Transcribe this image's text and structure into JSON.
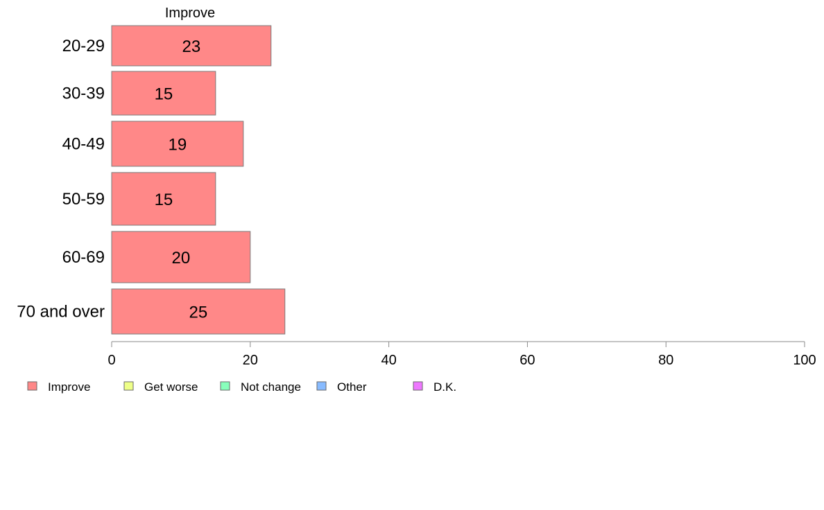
{
  "chart_data": {
    "type": "bar",
    "orientation": "horizontal",
    "categories": [
      "20-29",
      "30-39",
      "40-49",
      "50-59",
      "60-69",
      "70 and over"
    ],
    "series": [
      {
        "name": "Improve",
        "values": [
          23,
          15,
          19,
          15,
          20,
          25
        ],
        "color": "#ff8888"
      }
    ],
    "series_title": "Improve",
    "xlim": [
      0,
      100
    ],
    "xticks": [
      0,
      20,
      40,
      60,
      80,
      100
    ],
    "grid": false,
    "legend": {
      "placement": "bottom-left",
      "entries": [
        {
          "label": "Improve",
          "color": "#ff8888"
        },
        {
          "label": "Get worse",
          "color": "#eeff88"
        },
        {
          "label": "Not change",
          "color": "#88ffbb"
        },
        {
          "label": "Other",
          "color": "#88bbff"
        },
        {
          "label": "D.K.",
          "color": "#ee77ff"
        }
      ]
    }
  }
}
